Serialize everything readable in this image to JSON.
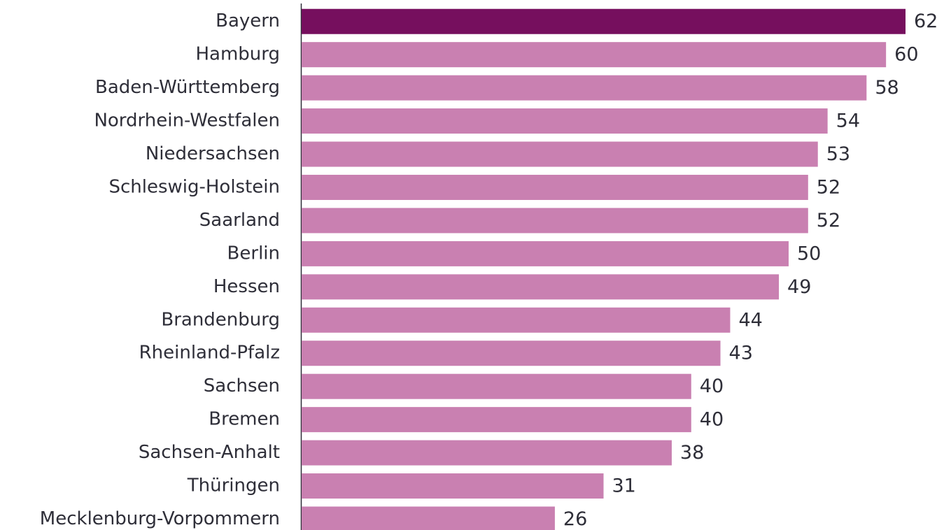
{
  "chart_data": {
    "type": "bar",
    "categories": [
      "Bayern",
      "Hamburg",
      "Baden-Württemberg",
      "Nordrhein-Westfalen",
      "Niedersachsen",
      "Schleswig-Holstein",
      "Saarland",
      "Berlin",
      "Hessen",
      "Brandenburg",
      "Rheinland-Pfalz",
      "Sachsen",
      "Bremen",
      "Sachsen-Anhalt",
      "Thüringen",
      "Mecklenburg-Vorpommern"
    ],
    "values": [
      62,
      60,
      58,
      54,
      53,
      52,
      52,
      50,
      49,
      44,
      43,
      40,
      40,
      38,
      31,
      26
    ],
    "colors": [
      "#760f5e",
      "#c980b1",
      "#c980b1",
      "#c980b1",
      "#c980b1",
      "#c980b1",
      "#c980b1",
      "#c980b1",
      "#c980b1",
      "#c980b1",
      "#c980b1",
      "#c980b1",
      "#c980b1",
      "#c980b1",
      "#c980b1",
      "#c980b1"
    ]
  }
}
